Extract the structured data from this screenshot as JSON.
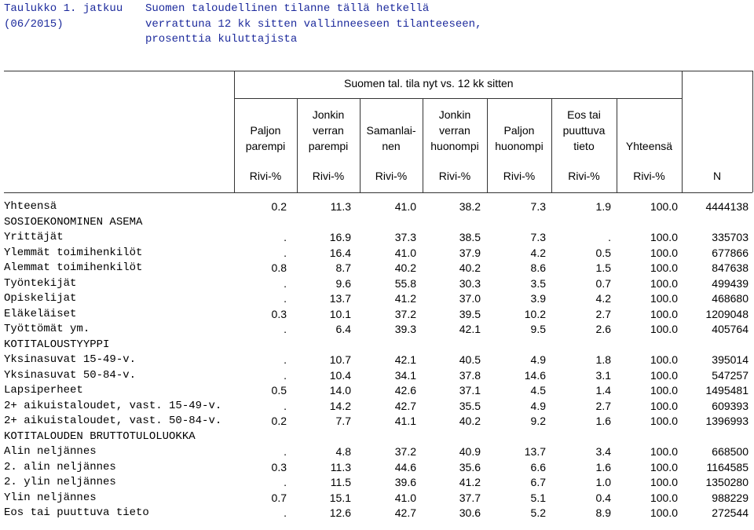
{
  "header": {
    "title_left": [
      "Taulukko 1. jatkuu",
      "(06/2015)"
    ],
    "title_right": [
      "Suomen taloudellinen tilanne tällä hetkellä",
      "verrattuna 12 kk sitten vallinneeseen tilanteeseen,",
      "prosenttia kuluttajista"
    ]
  },
  "table": {
    "group_header": "Suomen tal. tila nyt vs. 12 kk sitten",
    "columns": [
      [
        "Paljon",
        "parempi"
      ],
      [
        "Jonkin",
        "verran",
        "parempi"
      ],
      [
        "Samanlai-",
        "nen"
      ],
      [
        "Jonkin",
        "verran",
        "huonompi"
      ],
      [
        "Paljon",
        "huonompi"
      ],
      [
        "Eos tai",
        "puuttuva",
        "tieto"
      ],
      [
        "Yhteensä"
      ],
      []
    ],
    "units": [
      "Rivi-%",
      "Rivi-%",
      "Rivi-%",
      "Rivi-%",
      "Rivi-%",
      "Rivi-%",
      "Rivi-%",
      "N"
    ],
    "rows": [
      [
        "Yhteensä",
        "0.2",
        "11.3",
        "41.0",
        "38.2",
        "7.3",
        "1.9",
        "100.0",
        "4444138"
      ],
      [
        "SOSIOEKONOMINEN ASEMA"
      ],
      [
        "Yrittäjät",
        ".",
        "16.9",
        "37.3",
        "38.5",
        "7.3",
        ".",
        "100.0",
        "335703"
      ],
      [
        "Ylemmät toimihenkilöt",
        ".",
        "16.4",
        "41.0",
        "37.9",
        "4.2",
        "0.5",
        "100.0",
        "677866"
      ],
      [
        "Alemmat toimihenkilöt",
        "0.8",
        "8.7",
        "40.2",
        "40.2",
        "8.6",
        "1.5",
        "100.0",
        "847638"
      ],
      [
        "Työntekijät",
        ".",
        "9.6",
        "55.8",
        "30.3",
        "3.5",
        "0.7",
        "100.0",
        "499439"
      ],
      [
        "Opiskelijat",
        ".",
        "13.7",
        "41.2",
        "37.0",
        "3.9",
        "4.2",
        "100.0",
        "468680"
      ],
      [
        "Eläkeläiset",
        "0.3",
        "10.1",
        "37.2",
        "39.5",
        "10.2",
        "2.7",
        "100.0",
        "1209048"
      ],
      [
        "Työttömät ym.",
        ".",
        "6.4",
        "39.3",
        "42.1",
        "9.5",
        "2.6",
        "100.0",
        "405764"
      ],
      [
        "KOTITALOUSTYYPPI"
      ],
      [
        "Yksinasuvat 15-49-v.",
        ".",
        "10.7",
        "42.1",
        "40.5",
        "4.9",
        "1.8",
        "100.0",
        "395014"
      ],
      [
        "Yksinasuvat 50-84-v.",
        ".",
        "10.4",
        "34.1",
        "37.8",
        "14.6",
        "3.1",
        "100.0",
        "547257"
      ],
      [
        "Lapsiperheet",
        "0.5",
        "14.0",
        "42.6",
        "37.1",
        "4.5",
        "1.4",
        "100.0",
        "1495481"
      ],
      [
        "2+ aikuistaloudet, vast. 15-49-v.",
        ".",
        "14.2",
        "42.7",
        "35.5",
        "4.9",
        "2.7",
        "100.0",
        "609393"
      ],
      [
        "2+ aikuistaloudet, vast. 50-84-v.",
        "0.2",
        "7.7",
        "41.1",
        "40.2",
        "9.2",
        "1.6",
        "100.0",
        "1396993"
      ],
      [
        "KOTITALOUDEN BRUTTOTULOLUOKKA"
      ],
      [
        "Alin neljännes",
        ".",
        "4.8",
        "37.2",
        "40.9",
        "13.7",
        "3.4",
        "100.0",
        "668500"
      ],
      [
        "2. alin neljännes",
        "0.3",
        "11.3",
        "44.6",
        "35.6",
        "6.6",
        "1.6",
        "100.0",
        "1164585"
      ],
      [
        "2. ylin neljännes",
        ".",
        "11.5",
        "39.6",
        "41.2",
        "6.7",
        "1.0",
        "100.0",
        "1350280"
      ],
      [
        "Ylin neljännes",
        "0.7",
        "15.1",
        "41.0",
        "37.7",
        "5.1",
        "0.4",
        "100.0",
        "988229"
      ],
      [
        "Eos tai puuttuva tieto",
        ".",
        "12.6",
        "42.7",
        "30.6",
        "5.2",
        "8.9",
        "100.0",
        "272544"
      ]
    ]
  }
}
